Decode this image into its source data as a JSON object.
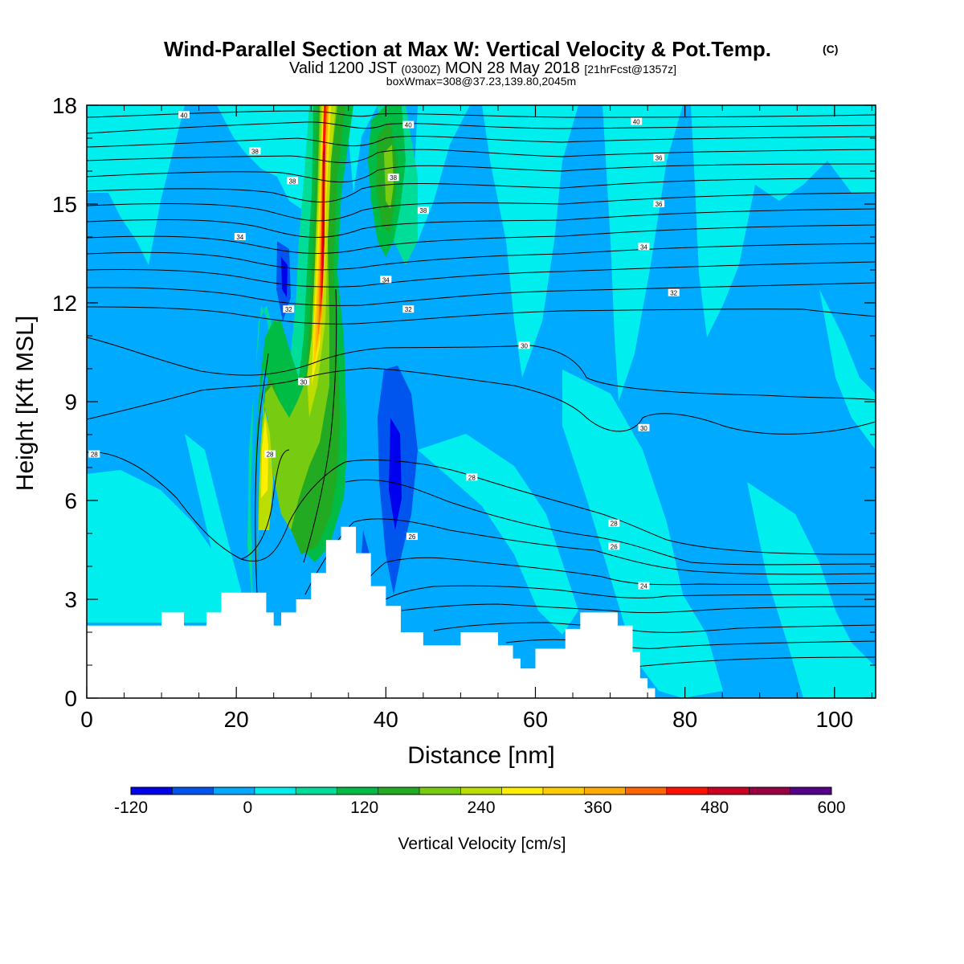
{
  "header": {
    "title_main": "Wind-Parallel Section at Max W: Vertical Velocity & Pot.Temp.",
    "title_mark": "(C)",
    "valid_pre": "Valid 1200 JST",
    "valid_z": "(0300Z)",
    "valid_date": "MON 28 May 2018",
    "valid_fcst": "[21hrFcst@1357z]",
    "box_info": "boxWmax=308@37.23,139.80,2045m"
  },
  "colors": {
    "terrain": "#ffffff",
    "isentrope": "#000000",
    "background": "#ffffff"
  },
  "chart_data": {
    "type": "heatmap",
    "xlabel": "Distance [nm]",
    "ylabel": "Height [Kft MSL]",
    "xlim": [
      0,
      105.5
    ],
    "ylim": [
      0,
      18
    ],
    "x_ticks": [
      0,
      20,
      40,
      60,
      80,
      100
    ],
    "y_ticks": [
      0,
      3,
      6,
      9,
      12,
      15,
      18
    ],
    "colorbar": {
      "label": "Vertical Velocity [cm/s]",
      "levels": [
        -120,
        -90,
        -60,
        -30,
        0,
        30,
        60,
        90,
        120,
        150,
        180,
        210,
        240,
        270,
        300,
        330,
        360,
        390,
        420,
        450,
        480,
        510,
        540,
        570,
        600
      ],
      "tick_labels": [
        "-120",
        "0",
        "120",
        "240",
        "360",
        "480",
        "600"
      ],
      "colors": [
        "#0000ee",
        "#0055ee",
        "#00aaff",
        "#00eeee",
        "#00dd99",
        "#00bb44",
        "#22aa22",
        "#77cc11",
        "#bbdd00",
        "#ffee00",
        "#ffcc00",
        "#ffaa00",
        "#ff6600",
        "#ff1100",
        "#cc0022",
        "#990044",
        "#550088"
      ]
    },
    "terrain_kft": [
      [
        0,
        2.2
      ],
      [
        10,
        2.6
      ],
      [
        13,
        2.2
      ],
      [
        16,
        2.6
      ],
      [
        18,
        3.2
      ],
      [
        23,
        3.2
      ],
      [
        24,
        2.6
      ],
      [
        25,
        2.2
      ],
      [
        26,
        2.6
      ],
      [
        28,
        3.0
      ],
      [
        30,
        3.8
      ],
      [
        32,
        4.8
      ],
      [
        34,
        5.2
      ],
      [
        36,
        4.4
      ],
      [
        38,
        3.4
      ],
      [
        40,
        2.8
      ],
      [
        42,
        2.0
      ],
      [
        45,
        1.6
      ],
      [
        47,
        1.6
      ],
      [
        50,
        2.0
      ],
      [
        55,
        1.6
      ],
      [
        57,
        1.2
      ],
      [
        58,
        0.9
      ],
      [
        60,
        1.5
      ],
      [
        62,
        1.5
      ],
      [
        64,
        2.1
      ],
      [
        66,
        2.6
      ],
      [
        69,
        2.6
      ],
      [
        71,
        2.2
      ],
      [
        73,
        1.4
      ],
      [
        74,
        0.6
      ],
      [
        75,
        0.3
      ],
      [
        76,
        0
      ],
      [
        105.5,
        0
      ]
    ],
    "vertical_velocity_features": [
      {
        "type": "updraft",
        "x": 32.3,
        "y_range": [
          9.5,
          18
        ],
        "max_cm_s": 480
      },
      {
        "type": "updraft",
        "x": 24,
        "y_range": [
          2.6,
          12
        ],
        "max_cm_s": 270
      },
      {
        "type": "updraft",
        "x": 28.5,
        "y_range": [
          3,
          11.5
        ],
        "max_cm_s": 180
      },
      {
        "type": "updraft",
        "x": 40.5,
        "y_range": [
          11.5,
          18
        ],
        "max_cm_s": 210
      },
      {
        "type": "downdraft",
        "x": 41,
        "y_range": [
          3,
          9.5
        ],
        "min_cm_s": -120
      },
      {
        "type": "downdraft",
        "x": 26.5,
        "y_range": [
          11.5,
          13.5
        ],
        "min_cm_s": -120
      }
    ],
    "isentrope_labels": [
      {
        "text": "40",
        "x": 13,
        "y": 17.7
      },
      {
        "text": "40",
        "x": 43,
        "y": 17.4
      },
      {
        "text": "40",
        "x": 73.5,
        "y": 17.5
      },
      {
        "text": "38",
        "x": 22.5,
        "y": 16.6
      },
      {
        "text": "38",
        "x": 27.5,
        "y": 15.7
      },
      {
        "text": "38",
        "x": 41,
        "y": 15.8
      },
      {
        "text": "38",
        "x": 45,
        "y": 14.8
      },
      {
        "text": "36",
        "x": 76.5,
        "y": 16.4
      },
      {
        "text": "36",
        "x": 76.5,
        "y": 15
      },
      {
        "text": "34",
        "x": 20.5,
        "y": 14
      },
      {
        "text": "34",
        "x": 40,
        "y": 12.7
      },
      {
        "text": "34",
        "x": 74.5,
        "y": 13.7
      },
      {
        "text": "32",
        "x": 27,
        "y": 11.8
      },
      {
        "text": "32",
        "x": 43,
        "y": 11.8
      },
      {
        "text": "32",
        "x": 78.5,
        "y": 12.3
      },
      {
        "text": "30",
        "x": 29,
        "y": 9.6
      },
      {
        "text": "30",
        "x": 58.5,
        "y": 10.7
      },
      {
        "text": "30",
        "x": 74.5,
        "y": 8.2
      },
      {
        "text": "28",
        "x": 1,
        "y": 7.4
      },
      {
        "text": "28",
        "x": 24.5,
        "y": 7.4
      },
      {
        "text": "28",
        "x": 51.5,
        "y": 6.7
      },
      {
        "text": "28",
        "x": 70.5,
        "y": 5.3
      },
      {
        "text": "26",
        "x": 43.5,
        "y": 4.9
      },
      {
        "text": "26",
        "x": 70.5,
        "y": 4.6
      },
      {
        "text": "24",
        "x": 74.5,
        "y": 3.4
      }
    ]
  }
}
